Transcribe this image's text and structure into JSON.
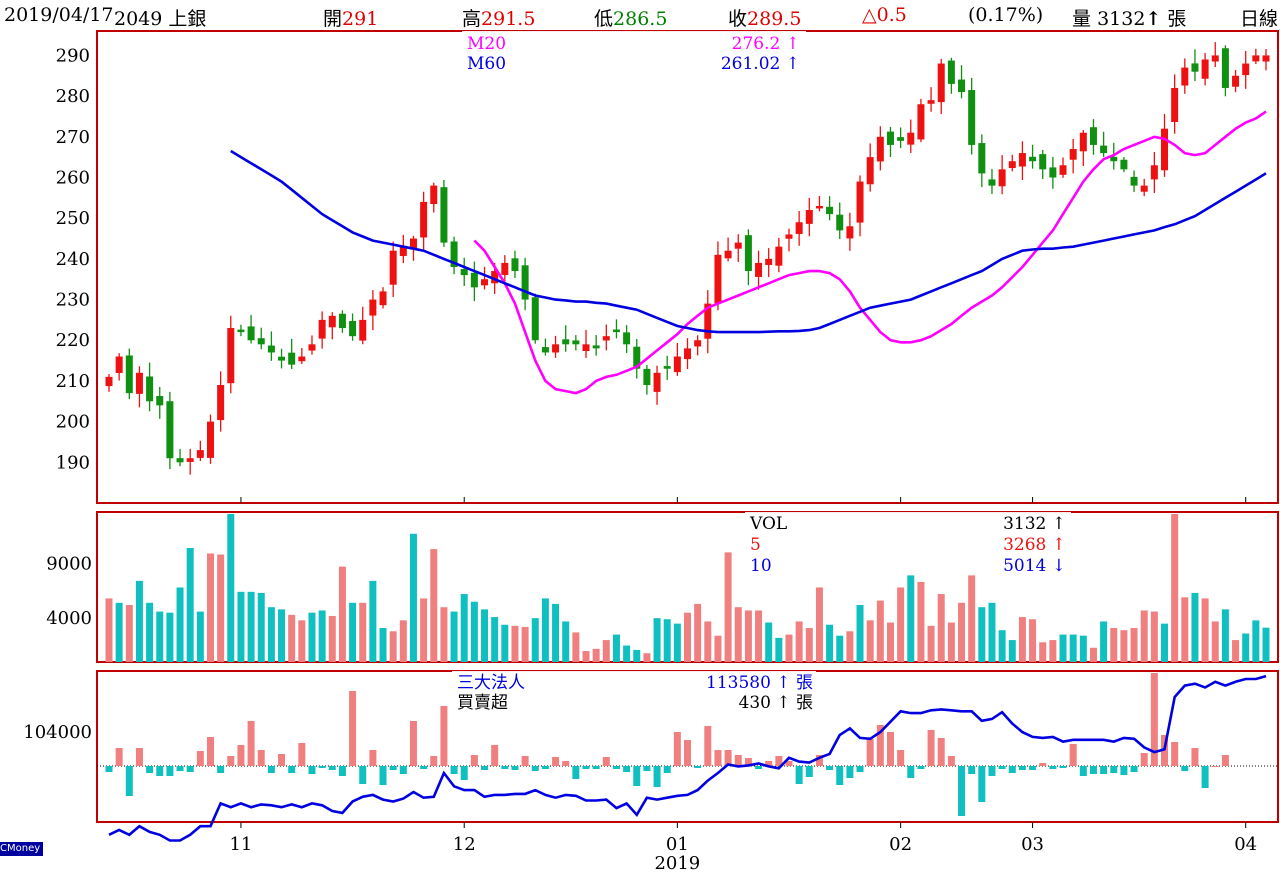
{
  "header": {
    "date": "2019/04/17",
    "stock": "2049 上銀",
    "open_label": "開",
    "open": "291",
    "high_label": "高",
    "high": "291.5",
    "low_label": "低",
    "low": "286.5",
    "close_label": "收",
    "close": "289.5",
    "change": "△0.5",
    "change_pct": "(0.17%)",
    "volume_label": "量",
    "volume": "3132",
    "volume_unit": "張",
    "period": "日線"
  },
  "brand": "CMoney",
  "colors": {
    "up": "#ee1111",
    "down": "#109010",
    "ma20": "#ff00ff",
    "ma60": "#0000e0",
    "vol_up": "#f08080",
    "vol_down": "#10c0c0",
    "frame": "#c00000"
  },
  "chart_data": [
    {
      "type": "candlestick",
      "ylim": [
        180,
        296
      ],
      "yticks": [
        190,
        200,
        210,
        220,
        230,
        240,
        250,
        260,
        270,
        280,
        290
      ],
      "x_month_labels": [
        {
          "index": 13,
          "label": "11"
        },
        {
          "index": 35,
          "label": "12"
        },
        {
          "index": 56,
          "label": "01"
        },
        {
          "index": 78,
          "label": "02"
        },
        {
          "index": 91,
          "label": "03"
        },
        {
          "index": 112,
          "label": "04"
        }
      ],
      "x_year_label": {
        "index": 56,
        "label": "2019"
      },
      "legend": [
        {
          "name": "M20",
          "value": "276.2",
          "arrow": "↑"
        },
        {
          "name": "M60",
          "value": "261.02",
          "arrow": "↑"
        }
      ],
      "closes": [
        211,
        216,
        207,
        212,
        205,
        204,
        191,
        190,
        191,
        193,
        200,
        209,
        223,
        222,
        220,
        219,
        217,
        215,
        214,
        216,
        219,
        225,
        226,
        223,
        221,
        225,
        230,
        232,
        242,
        243,
        245,
        254,
        258,
        244,
        238,
        236,
        233,
        235,
        237,
        239,
        237,
        230,
        220,
        217,
        219,
        219,
        219,
        219,
        218,
        221,
        222,
        219,
        213,
        209,
        212,
        213,
        216,
        218,
        220,
        229,
        241,
        242,
        244,
        237,
        239,
        240,
        243,
        246,
        249,
        252,
        253,
        251,
        247,
        248,
        259,
        265,
        270,
        268,
        269,
        271,
        278,
        279,
        288,
        283,
        281,
        268,
        261,
        258,
        262,
        264,
        266,
        264,
        262,
        260,
        263,
        267,
        271,
        268,
        266,
        264,
        262,
        258,
        258,
        263,
        272,
        282,
        287,
        286,
        289,
        290,
        282,
        285,
        288,
        290,
        290
      ],
      "ma20": [
        244.5,
        242,
        238,
        234,
        229,
        222,
        215,
        210,
        208,
        207.5,
        207,
        208,
        210,
        211,
        211.5,
        212.5,
        213.5,
        215.5,
        217.5,
        219.5,
        221.5,
        224,
        226,
        228,
        229,
        230,
        231,
        232,
        233,
        234,
        235,
        236,
        236.5,
        237,
        237,
        236.5,
        235,
        232,
        228,
        225,
        222,
        220,
        219.5,
        219.5,
        220,
        221,
        222.5,
        224,
        226,
        228,
        229.5,
        231,
        233,
        235.5,
        238,
        241,
        244,
        247,
        251,
        255,
        259,
        262,
        264.5,
        265.5,
        267,
        268,
        269,
        270,
        269.5,
        268,
        266,
        265.5,
        266,
        268,
        270,
        272,
        273.5,
        274.5,
        276.2
      ],
      "ma60": [
        266.5,
        265,
        263.5,
        262,
        260.5,
        259,
        257,
        255,
        253,
        251,
        249.5,
        248,
        246.5,
        245.5,
        244.5,
        244,
        243.5,
        243,
        242.5,
        242,
        241,
        240,
        239,
        238,
        237,
        236,
        235,
        234,
        233,
        232,
        231,
        230.5,
        230,
        229.8,
        229.5,
        229.5,
        229.2,
        229,
        228.5,
        228,
        227.5,
        226.5,
        225.5,
        224.5,
        223.5,
        223,
        222.5,
        222.2,
        222,
        222,
        222,
        222,
        222,
        222.1,
        222.2,
        222.2,
        222.3,
        222.5,
        223,
        224,
        225,
        226,
        227,
        228,
        228.5,
        229,
        229.5,
        230,
        231,
        232,
        233,
        234,
        235,
        236,
        237,
        238.5,
        240,
        241,
        242,
        242.3,
        242.5,
        242.5,
        242.8,
        243,
        243.5,
        244,
        244.5,
        245,
        245.5,
        246,
        246.5,
        247,
        247.8,
        248.5,
        249.5,
        250.5,
        252,
        253.5,
        255,
        256.5,
        258,
        259.5,
        261.02
      ]
    },
    {
      "type": "bar",
      "title": "VOL",
      "yticks": [
        4000,
        9000
      ],
      "ylim": [
        0,
        13500
      ],
      "legend": [
        {
          "name": "VOL",
          "value": "3132",
          "arrow": "↑"
        },
        {
          "name": "5",
          "value": "3268",
          "arrow": "↑"
        },
        {
          "name": "10",
          "value": "5014",
          "arrow": "↓"
        }
      ],
      "values": [
        5800,
        5400,
        5200,
        7400,
        5400,
        4600,
        4500,
        6800,
        10400,
        4600,
        9900,
        9800,
        13500,
        6400,
        6400,
        6300,
        5000,
        4800,
        4300,
        3800,
        4500,
        4700,
        4200,
        8700,
        5400,
        5400,
        7400,
        3100,
        2800,
        3800,
        11700,
        5800,
        10300,
        5000,
        4600,
        6200,
        5500,
        4800,
        4100,
        3400,
        3300,
        3200,
        4000,
        5800,
        5300,
        3700,
        2700,
        1000,
        1200,
        2000,
        2500,
        1500,
        1100,
        800,
        4000,
        3900,
        3500,
        4500,
        5300,
        3700,
        2400,
        10000,
        5000,
        4700,
        4700,
        3600,
        2200,
        2500,
        3700,
        3100,
        6800,
        3400,
        2400,
        2800,
        5200,
        3800,
        5600,
        3600,
        6800,
        7900,
        7300,
        3300,
        6200,
        3600,
        5400,
        7900,
        5000,
        5400,
        2900,
        2000,
        4100,
        3900,
        1800,
        2000,
        2500,
        2500,
        2400,
        1300,
        3700,
        3100,
        2900,
        3100,
        4700,
        4600,
        3500,
        13500,
        5900,
        6300,
        5800,
        3700,
        4800,
        2000,
        2600,
        3800,
        3132
      ],
      "down_index": [
        1,
        3,
        4,
        5,
        6,
        7,
        8,
        9,
        12,
        13,
        14,
        15,
        16,
        17,
        20,
        21,
        24,
        26,
        27,
        30,
        34,
        35,
        36,
        37,
        38,
        39,
        42,
        43,
        44,
        45,
        50,
        51,
        52,
        54,
        55,
        56,
        65,
        66,
        71,
        72,
        74,
        79,
        86,
        87,
        88,
        89,
        94,
        95,
        96,
        98,
        104,
        107,
        110,
        112,
        113,
        114
      ]
    },
    {
      "type": "bar+line",
      "title": "三大法人 買賣超",
      "yticks": [
        104000
      ],
      "legend": [
        {
          "name": "三大法人",
          "value": "113580",
          "arrow": "↑",
          "unit": "張"
        },
        {
          "name": "買賣超",
          "value": "430",
          "arrow": "↑",
          "unit": "張"
        }
      ],
      "net": [
        -0.6,
        1.8,
        -3,
        1.8,
        -0.7,
        -1,
        -1,
        -0.5,
        -0.6,
        1.5,
        2.9,
        -0.7,
        1,
        2.1,
        4.5,
        1.6,
        -0.7,
        1.2,
        -0.7,
        2.3,
        -0.8,
        -0.2,
        -0.4,
        -1,
        7.5,
        -1.8,
        1.6,
        -1.9,
        -0.4,
        -0.8,
        4.5,
        -0.3,
        1,
        6,
        -0.8,
        -1.4,
        1.1,
        -0.4,
        2.1,
        -0.3,
        -0.4,
        1,
        -0.5,
        -0.3,
        0.9,
        0.5,
        -1.3,
        -0.3,
        -0.3,
        0.9,
        -0.3,
        -0.6,
        -2,
        -0.5,
        -2.1,
        -0.7,
        3.4,
        2.6,
        -0.2,
        4,
        1.6,
        1.6,
        1.1,
        0.8,
        -0.3,
        0.5,
        1,
        0.5,
        -1.8,
        -1.1,
        1.1,
        -0.4,
        -1.9,
        -1.2,
        -0.6,
        2.7,
        4.1,
        3.4,
        1.6,
        -1.2,
        -0.3,
        3.6,
        2.8,
        1,
        -5,
        -0.8,
        -3.6,
        -1,
        -0.3,
        -0.7,
        -0.4,
        -0.4,
        0.3,
        -0.3,
        -0.2,
        2.2,
        -1,
        -0.8,
        -0.8,
        -0.7,
        -0.9,
        -0.6,
        1.3,
        9.3,
        3.1,
        2.4,
        -0.5,
        1.8,
        -2.2,
        0,
        1.1
      ],
      "cumulative": [
        -4.5,
        -4,
        -4.5,
        -3.6,
        -4.2,
        -4.5,
        -5.1,
        -5.1,
        -4.5,
        -3.6,
        -3.6,
        -1.2,
        -1.6,
        -1.2,
        -1.6,
        -1.3,
        -1.4,
        -1.6,
        -1.3,
        -1.6,
        -1.2,
        -1.4,
        -2,
        -2.2,
        -1,
        -0.5,
        -0.3,
        -0.8,
        -1,
        -0.7,
        0,
        -0.6,
        -0.5,
        2,
        0.6,
        0.2,
        0.2,
        -0.5,
        -0.3,
        -0.3,
        -0.2,
        -0.2,
        0.2,
        -0.3,
        -0.6,
        -0.3,
        -0.4,
        -0.9,
        -0.9,
        -0.8,
        -1.7,
        -1.2,
        -2.4,
        -0.6,
        -0.8,
        -0.6,
        -0.4,
        -0.3,
        0.2,
        1.2,
        2,
        2.9,
        2.7,
        2.8,
        3,
        2.7,
        2.5,
        3.6,
        3.2,
        3.1,
        3.6,
        4,
        6,
        6.7,
        5.7,
        5.6,
        6.3,
        7.4,
        8.5,
        8.3,
        8.3,
        8.6,
        8.7,
        8.6,
        8.5,
        8.5,
        7.5,
        7.7,
        8.4,
        7.2,
        6.3,
        5.8,
        5.7,
        5.8,
        5.3,
        5.5,
        5.5,
        5.5,
        5.5,
        5.3,
        5.7,
        5.6,
        4.7,
        4.2,
        4.5,
        10,
        11.2,
        11.4,
        11,
        11.6,
        11.2,
        11.6,
        11.9,
        11.9,
        12.2
      ]
    }
  ]
}
